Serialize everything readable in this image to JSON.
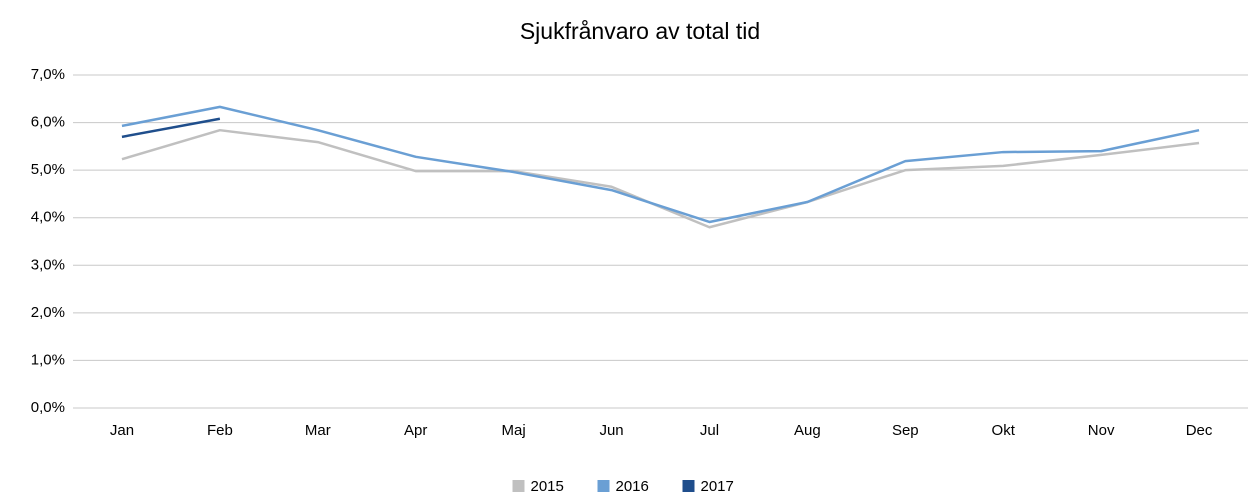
{
  "chart_data": {
    "type": "line",
    "title": "Sjukfrånvaro av total tid",
    "categories": [
      "Jan",
      "Feb",
      "Mar",
      "Apr",
      "Maj",
      "Jun",
      "Jul",
      "Aug",
      "Sep",
      "Okt",
      "Nov",
      "Dec"
    ],
    "series": [
      {
        "name": "2015",
        "color": "#c0c0c0",
        "values": [
          5.23,
          5.84,
          5.59,
          4.98,
          4.98,
          4.65,
          3.8,
          4.33,
          5.0,
          5.09,
          5.32,
          5.57
        ]
      },
      {
        "name": "2016",
        "color": "#6a9fd4",
        "values": [
          5.93,
          6.33,
          5.84,
          5.28,
          4.96,
          4.58,
          3.91,
          4.33,
          5.19,
          5.38,
          5.4,
          5.84
        ]
      },
      {
        "name": "2017",
        "color": "#1f4e8c",
        "values": [
          5.7,
          6.08,
          null,
          null,
          null,
          null,
          null,
          null,
          null,
          null,
          null,
          null
        ]
      }
    ],
    "ylim": [
      0,
      7
    ],
    "yticks": [
      {
        "value": 0,
        "label": "0,0%"
      },
      {
        "value": 1,
        "label": "1,0%"
      },
      {
        "value": 2,
        "label": "2,0%"
      },
      {
        "value": 3,
        "label": "3,0%"
      },
      {
        "value": 4,
        "label": "4,0%"
      },
      {
        "value": 5,
        "label": "5,0%"
      },
      {
        "value": 6,
        "label": "6,0%"
      },
      {
        "value": 7,
        "label": "7,0%"
      }
    ],
    "grid": true,
    "legend": "bottom"
  }
}
